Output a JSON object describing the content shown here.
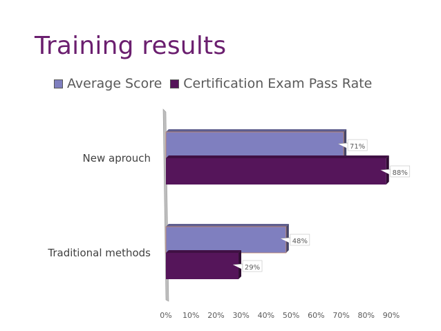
{
  "chart_data": {
    "type": "bar",
    "orientation": "horizontal",
    "title": "Training results",
    "categories": [
      "New aprouch",
      "Traditional methods"
    ],
    "series": [
      {
        "name": "Average Score",
        "values": [
          71,
          48
        ],
        "labels": [
          "71%",
          "48%"
        ],
        "color": "#7f7fbf"
      },
      {
        "name": "Certification Exam Pass Rate",
        "values": [
          88,
          29
        ],
        "labels": [
          "88%",
          "29%"
        ],
        "color": "#55155a"
      }
    ],
    "xticks": [
      "0%",
      "10%",
      "20%",
      "30%",
      "40%",
      "50%",
      "60%",
      "70%",
      "80%",
      "90%"
    ],
    "xlim": [
      0,
      90
    ],
    "grid": false,
    "legend": "top"
  }
}
